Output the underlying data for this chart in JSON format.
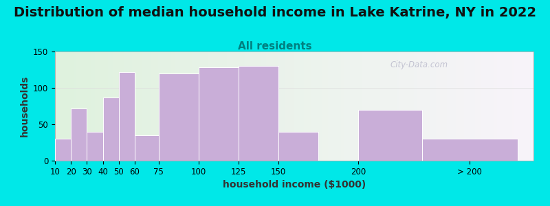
{
  "title": "Distribution of median household income in Lake Katrine, NY in 2022",
  "subtitle": "All residents",
  "xlabel": "household income ($1000)",
  "ylabel": "households",
  "bar_labels": [
    "10",
    "20",
    "30",
    "40",
    "50",
    "60",
    "75",
    "100",
    "125",
    "150",
    "200",
    "> 200"
  ],
  "bar_heights": [
    30,
    72,
    40,
    87,
    122,
    35,
    120,
    128,
    130,
    40,
    70,
    30
  ],
  "bar_lefts": [
    10,
    20,
    30,
    40,
    50,
    60,
    75,
    100,
    125,
    150,
    200,
    240
  ],
  "bar_widths": [
    10,
    10,
    10,
    10,
    10,
    15,
    25,
    25,
    25,
    25,
    40,
    60
  ],
  "xtick_positions": [
    10,
    20,
    30,
    40,
    50,
    60,
    75,
    100,
    125,
    150,
    200,
    270
  ],
  "xtick_labels": [
    "10",
    "20",
    "30",
    "40",
    "50",
    "60",
    "75",
    "100",
    "125",
    "150",
    "200",
    "> 200"
  ],
  "bar_color": "#c9aed8",
  "bar_edgecolor": "#ffffff",
  "ylim": [
    0,
    150
  ],
  "xlim": [
    10,
    310
  ],
  "yticks": [
    0,
    50,
    100,
    150
  ],
  "bg_color": "#00e8e8",
  "plot_bg_left": "#dff2de",
  "plot_bg_right": "#f8f4fa",
  "title_fontsize": 14,
  "subtitle_fontsize": 11,
  "subtitle_color": "#008080",
  "axis_label_fontsize": 10,
  "tick_label_fontsize": 8.5,
  "watermark_text": "City-Data.com",
  "watermark_color": "#bbbbcc"
}
